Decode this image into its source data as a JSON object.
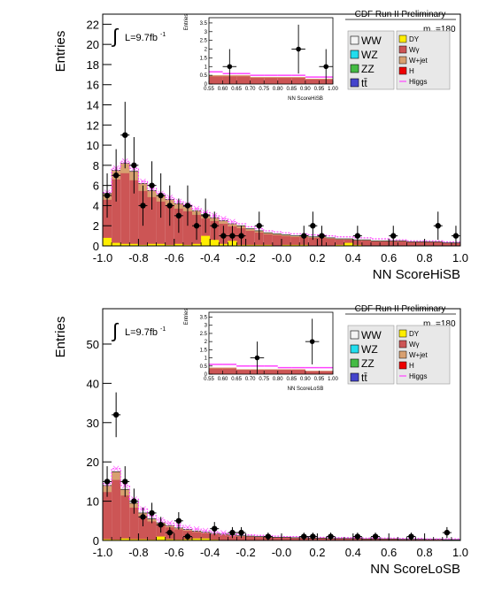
{
  "chart_data": [
    {
      "type": "bar",
      "ylabel": "Entries",
      "xlabel": "NN ScoreHiSB",
      "xlim": [
        -1.0,
        1.0
      ],
      "ylim": [
        0,
        23
      ],
      "xticks": [
        "-1.0",
        "-0.8",
        "-0.6",
        "-0.4",
        "-0.2",
        "-0.0",
        "0.2",
        "0.4",
        "0.6",
        "0.8",
        "1.0"
      ],
      "yticks": [
        "0",
        "2",
        "4",
        "6",
        "8",
        "10",
        "12",
        "14",
        "16",
        "18",
        "20",
        "22"
      ],
      "lumi": "L=9.7fb",
      "lumi_sup": "-1",
      "run_label": "CDF Run II Preliminary",
      "mass_label": "m",
      "mass_sub": "H",
      "mass_value": "=180",
      "legend_left": [
        "WW",
        "WZ",
        "ZZ",
        "tt̄"
      ],
      "legend_right": [
        "DY",
        "Wγ",
        "W+jet",
        "H",
        "Higgs"
      ],
      "colors": {
        "WW": "#f4f4f4",
        "WZ": "#22ddee",
        "ZZ": "#44bb44",
        "tt": "#4444cc",
        "DY": "#ffee00",
        "Wg": "#cc5555",
        "Wjet": "#d8a070",
        "H": "#ee0000",
        "Higgs": "#ff44ff"
      },
      "bin_edges_range": [
        -1.0,
        1.0
      ],
      "bin_count": 40,
      "stack_total": [
        5.2,
        7.5,
        8.2,
        7.4,
        6.2,
        5.5,
        5.0,
        4.6,
        4.2,
        3.9,
        3.5,
        3.1,
        2.8,
        2.5,
        2.2,
        2.0,
        1.7,
        1.5,
        1.3,
        1.2,
        1.1,
        1.0,
        1.0,
        0.9,
        0.9,
        0.8,
        0.7,
        0.7,
        0.6,
        0.6,
        0.5,
        0.5,
        0.5,
        0.5,
        0.4,
        0.4,
        0.4,
        0.4,
        0.3,
        0.3
      ],
      "yellow_dy": [
        0.8,
        0.3,
        0.2,
        0.2,
        0.1,
        0.2,
        0.2,
        0.1,
        0.2,
        0.1,
        0.2,
        1.0,
        0.6,
        0.2,
        0.5,
        0.1,
        0.1,
        0.1,
        0.1,
        0.0,
        0.1,
        0.1,
        0.1,
        0.0,
        0.0,
        0.0,
        0.1,
        0.3,
        0.1,
        0.0,
        0.0,
        0.0,
        0.0,
        0.0,
        0.0,
        0.0,
        0.0,
        0.0,
        0.0,
        0.0
      ],
      "signal": [
        5.3,
        7.7,
        8.4,
        7.7,
        6.4,
        5.7,
        5.2,
        4.8,
        4.4,
        4.1,
        3.7,
        3.3,
        3.0,
        2.7,
        2.4,
        2.2,
        1.9,
        1.7,
        1.5,
        1.4,
        1.3,
        1.2,
        1.2,
        1.1,
        1.1,
        1.0,
        0.9,
        0.9,
        0.8,
        0.8,
        0.7,
        0.7,
        0.6,
        0.6,
        0.5,
        0.5,
        0.5,
        0.5,
        0.4,
        0.4
      ],
      "data_points": [
        {
          "x": -0.975,
          "y": 5,
          "e": 2.2
        },
        {
          "x": -0.925,
          "y": 7,
          "e": 2.6
        },
        {
          "x": -0.875,
          "y": 11,
          "e": 3.3
        },
        {
          "x": -0.825,
          "y": 8,
          "e": 2.8
        },
        {
          "x": -0.775,
          "y": 4,
          "e": 2.0
        },
        {
          "x": -0.725,
          "y": 6,
          "e": 2.4
        },
        {
          "x": -0.675,
          "y": 5,
          "e": 2.2
        },
        {
          "x": -0.625,
          "y": 4,
          "e": 2.0
        },
        {
          "x": -0.575,
          "y": 3,
          "e": 1.7
        },
        {
          "x": -0.525,
          "y": 4,
          "e": 2.0
        },
        {
          "x": -0.475,
          "y": 2,
          "e": 1.4
        },
        {
          "x": -0.425,
          "y": 3,
          "e": 1.7
        },
        {
          "x": -0.375,
          "y": 2,
          "e": 1.4
        },
        {
          "x": -0.325,
          "y": 1,
          "e": 1.0
        },
        {
          "x": -0.275,
          "y": 1,
          "e": 1.0
        },
        {
          "x": -0.225,
          "y": 1,
          "e": 1.0
        },
        {
          "x": -0.125,
          "y": 2,
          "e": 1.4
        },
        {
          "x": 0.125,
          "y": 1,
          "e": 1.0
        },
        {
          "x": 0.175,
          "y": 2,
          "e": 1.4
        },
        {
          "x": 0.225,
          "y": 1,
          "e": 1.0
        },
        {
          "x": 0.425,
          "y": 1,
          "e": 1.0
        },
        {
          "x": 0.625,
          "y": 1,
          "e": 1.0
        },
        {
          "x": 0.875,
          "y": 2,
          "e": 1.4
        },
        {
          "x": 0.975,
          "y": 1,
          "e": 1.0
        }
      ],
      "inset": {
        "ylabel": "Entries",
        "xlabel": "NN ScoreHiSB",
        "xlim": [
          0.55,
          1.0
        ],
        "ylim": [
          0,
          3.8
        ],
        "xticks": [
          "0.55",
          "0.60",
          "0.65",
          "0.70",
          "0.75",
          "0.80",
          "0.85",
          "0.90",
          "0.95",
          "1.00"
        ],
        "yticks": [
          "0",
          "0.5",
          "1",
          "1.5",
          "2",
          "2.5",
          "3",
          "3.5"
        ],
        "points": [
          {
            "x": 0.625,
            "y": 1,
            "e": 1.0
          },
          {
            "x": 0.875,
            "y": 2,
            "e": 1.4
          },
          {
            "x": 0.975,
            "y": 1,
            "e": 1.0
          }
        ]
      }
    },
    {
      "type": "bar",
      "ylabel": "Entries",
      "xlabel": "NN ScoreLoSB",
      "xlim": [
        -1.0,
        1.0
      ],
      "ylim": [
        0,
        59
      ],
      "xticks": [
        "-1.0",
        "-0.8",
        "-0.6",
        "-0.4",
        "-0.2",
        "-0.0",
        "0.2",
        "0.4",
        "0.6",
        "0.8",
        "1.0"
      ],
      "yticks": [
        "0",
        "10",
        "20",
        "30",
        "40",
        "50"
      ],
      "lumi": "L=9.7fb",
      "lumi_sup": "-1",
      "run_label": "CDF Run II Preliminary",
      "mass_label": "m",
      "mass_sub": "H",
      "mass_value": "=180",
      "legend_left": [
        "WW",
        "WZ",
        "ZZ",
        "tt̄"
      ],
      "legend_right": [
        "DY",
        "Wγ",
        "W+jet",
        "H",
        "Higgs"
      ],
      "stack_total": [
        14.0,
        17.5,
        13.0,
        9.5,
        7.0,
        5.5,
        4.5,
        3.8,
        3.2,
        2.8,
        2.4,
        2.1,
        1.8,
        1.6,
        1.4,
        1.2,
        1.1,
        1.0,
        0.9,
        0.8,
        0.8,
        0.7,
        0.7,
        0.6,
        0.6,
        0.5,
        0.5,
        0.5,
        0.5,
        0.4,
        0.4,
        0.4,
        0.4,
        0.3,
        0.3,
        0.3,
        0.3,
        0.3,
        0.2,
        0.2
      ],
      "yellow_dy": [
        0.3,
        0.2,
        0.5,
        0.3,
        0.3,
        0.2,
        1.0,
        0.3,
        0.2,
        0.3,
        0.5,
        0.5,
        0.2,
        0.1,
        0.1,
        0.1,
        0.1,
        0.0,
        0.0,
        0.0,
        0.0,
        0.0,
        0.0,
        0.0,
        0.0,
        0.0,
        0.0,
        0.0,
        0.0,
        0.0,
        0.0,
        0.0,
        0.0,
        0.0,
        0.0,
        0.0,
        0.0,
        0.0,
        0.0,
        0.0
      ],
      "signal": [
        14.5,
        18.3,
        14.0,
        10.5,
        8.0,
        6.3,
        5.2,
        4.4,
        3.8,
        3.3,
        2.9,
        2.5,
        2.2,
        1.9,
        1.7,
        1.5,
        1.4,
        1.3,
        1.2,
        1.1,
        1.0,
        1.0,
        0.9,
        0.9,
        0.8,
        0.8,
        0.7,
        0.7,
        0.7,
        0.6,
        0.6,
        0.6,
        0.6,
        0.5,
        0.5,
        0.5,
        0.4,
        0.4,
        0.4,
        0.4
      ],
      "data_points": [
        {
          "x": -0.975,
          "y": 15,
          "e": 3.9
        },
        {
          "x": -0.925,
          "y": 32,
          "e": 5.7
        },
        {
          "x": -0.875,
          "y": 15,
          "e": 3.9
        },
        {
          "x": -0.825,
          "y": 10,
          "e": 3.2
        },
        {
          "x": -0.775,
          "y": 6,
          "e": 2.4
        },
        {
          "x": -0.725,
          "y": 7,
          "e": 2.6
        },
        {
          "x": -0.675,
          "y": 4,
          "e": 2.0
        },
        {
          "x": -0.625,
          "y": 2,
          "e": 1.4
        },
        {
          "x": -0.575,
          "y": 5,
          "e": 2.2
        },
        {
          "x": -0.525,
          "y": 1,
          "e": 1.0
        },
        {
          "x": -0.375,
          "y": 3,
          "e": 1.7
        },
        {
          "x": -0.275,
          "y": 2,
          "e": 1.4
        },
        {
          "x": -0.225,
          "y": 2,
          "e": 1.4
        },
        {
          "x": -0.075,
          "y": 1,
          "e": 1.0
        },
        {
          "x": 0.125,
          "y": 1,
          "e": 1.0
        },
        {
          "x": 0.175,
          "y": 1,
          "e": 1.0
        },
        {
          "x": 0.275,
          "y": 1,
          "e": 1.0
        },
        {
          "x": 0.425,
          "y": 1,
          "e": 1.0
        },
        {
          "x": 0.525,
          "y": 1,
          "e": 1.0
        },
        {
          "x": 0.725,
          "y": 1,
          "e": 1.0
        },
        {
          "x": 0.925,
          "y": 2,
          "e": 1.4
        }
      ],
      "inset": {
        "ylabel": "Entries",
        "xlabel": "NN ScoreLoSB",
        "xlim": [
          0.55,
          1.0
        ],
        "ylim": [
          0,
          3.8
        ],
        "xticks": [
          "0.55",
          "0.60",
          "0.65",
          "0.70",
          "0.75",
          "0.80",
          "0.85",
          "0.90",
          "0.95",
          "1.00"
        ],
        "yticks": [
          "0",
          "0.5",
          "1",
          "1.5",
          "2",
          "2.5",
          "3",
          "3.5"
        ],
        "points": [
          {
            "x": 0.725,
            "y": 1,
            "e": 1.0
          },
          {
            "x": 0.925,
            "y": 2,
            "e": 1.4
          }
        ]
      }
    }
  ]
}
